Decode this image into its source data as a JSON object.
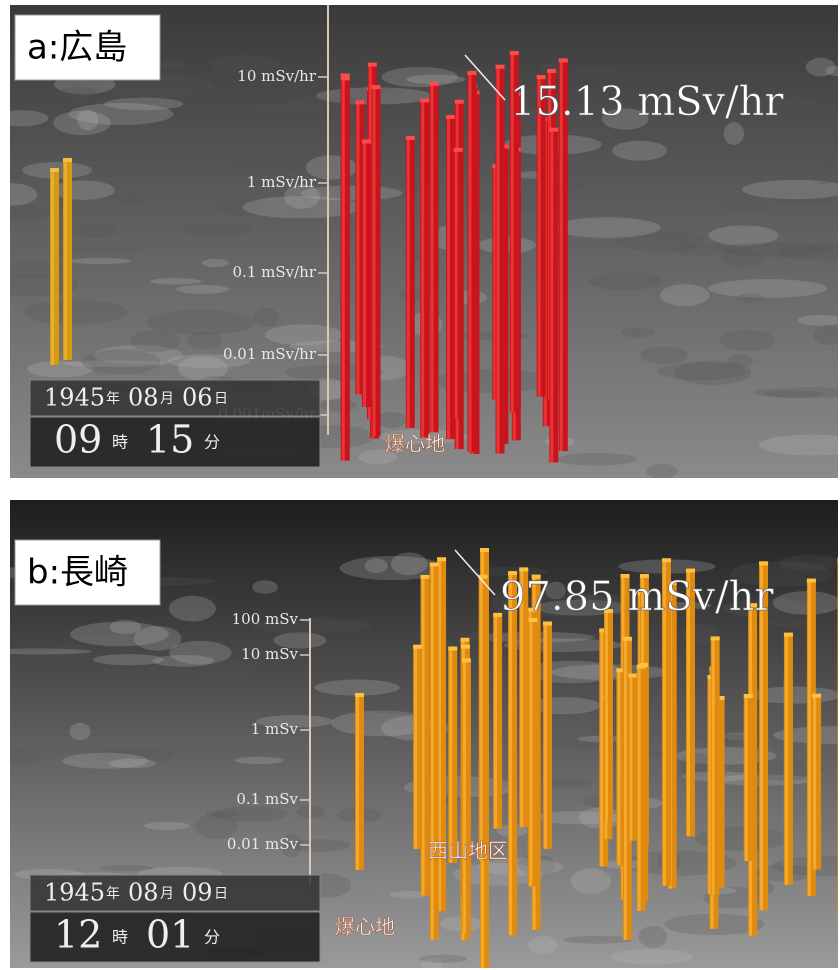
{
  "panels": [
    {
      "label": "a:広島",
      "axis_labels": [
        "10 mSv/hr",
        "1 mSv/hr",
        "0.1 mSv/hr",
        "0.01 mSv/hr",
        "0.001mSv/hr"
      ],
      "peak_label": "15.13 mSv/hr",
      "place_labels": [
        "爆心地"
      ],
      "date_parts": [
        "1945",
        "年",
        "08",
        "月",
        "06",
        "日"
      ],
      "time_parts": [
        "09",
        "時",
        "15",
        "分"
      ]
    },
    {
      "label": "b:長崎",
      "axis_labels": [
        "100 mSv",
        "10 mSv",
        "1 mSv",
        "0.1 mSv",
        "0.01 mSv"
      ],
      "peak_label": "97.85 mSv/hr",
      "place_labels": [
        "西山地区",
        "爆心地"
      ],
      "date_parts": [
        "1945",
        "年",
        "08",
        "月",
        "09",
        "日"
      ],
      "time_parts": [
        "12",
        "時",
        "01",
        "分"
      ]
    }
  ]
}
